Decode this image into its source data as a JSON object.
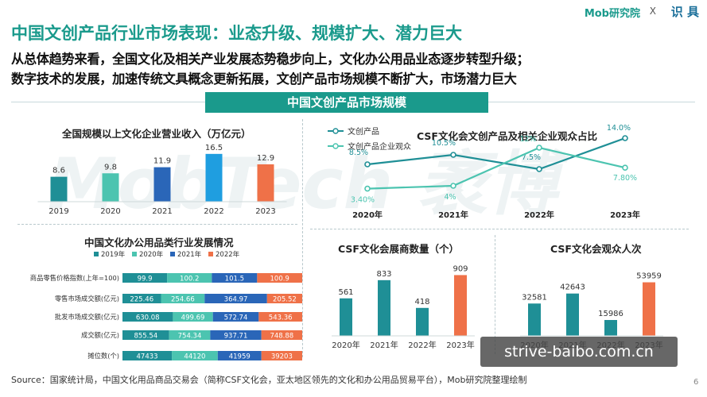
{
  "header": {
    "title": "中国文创产品行业市场表现：业态升级、规模扩大、潜力巨大",
    "subtitle_line1": "从总体趋势来看，全国文化及相关产业发展态势稳步向上，文化办公用品业态逐步转型升级；",
    "subtitle_line2": "数字技术的发展，加速传统文具概念更新拓展，文创产品市场规模不断扩大，市场潜力巨大",
    "logo_text": "Mob研究院",
    "logo_x": "X",
    "logo2_text": "识 具",
    "section_band": "中国文创产品市场规模"
  },
  "watermark": "MobTech 袤博",
  "colors": {
    "teal": "#1f8f96",
    "mint": "#4cc4b0",
    "blue": "#2a66b8",
    "orange": "#ef7148",
    "brand": "#1a9a8c"
  },
  "footer": {
    "source": "Source：国家统计局，中国文化用品商品交易会（简称CSF文化会，亚太地区领先的文化和办公用品贸易平台），Mob研究院整理绘制",
    "page_number": "6",
    "site_badge": "strive-baibo.com.cn"
  },
  "chart_data": [
    {
      "id": "revenue",
      "type": "bar",
      "title": "全国规模以上文化企业营业收入（万亿元）",
      "categories": [
        "2019",
        "2020",
        "2021",
        "2022",
        "2023"
      ],
      "values": [
        8.6,
        9.8,
        11.9,
        16.5,
        12.9
      ],
      "labels": [
        "8.6",
        "9.8",
        "11.9",
        "16.5",
        "12.9"
      ],
      "colors": [
        "#1f8f96",
        "#4cc4b0",
        "#2a66b8",
        "#1f9ee0",
        "#ef7148"
      ],
      "ylim": [
        0,
        17
      ]
    },
    {
      "id": "csf_share",
      "type": "line",
      "title": "CSF文化会文创产品及相关企业观众占比",
      "categories": [
        "2020年",
        "2021年",
        "2022年",
        "2023年"
      ],
      "series": [
        {
          "name": "文创产品",
          "values": [
            8.5,
            10.5,
            7.5,
            14.0
          ],
          "labels": [
            "8.5%",
            "10.5%",
            "7.5%",
            "14.0%"
          ],
          "color": "#1f8f96"
        },
        {
          "name": "文创产品企业观众",
          "values": [
            3.4,
            4,
            12,
            7.8
          ],
          "labels": [
            "3.40%",
            "4%",
            "12%",
            "7.80%"
          ],
          "color": "#4cc4b0"
        }
      ],
      "ylim": [
        0,
        15
      ],
      "legend": "top-left"
    },
    {
      "id": "office_supplies",
      "type": "bar",
      "orientation": "horizontal-stacked",
      "title": "中国文化办公用品类行业发展情况",
      "legend": [
        "2019年",
        "2020年",
        "2021年",
        "2022年"
      ],
      "legend_colors": [
        "#1f8f96",
        "#4cc4b0",
        "#2a66b8",
        "#ef7148"
      ],
      "rows": [
        {
          "label": "商品零售价格指数(上年=100)",
          "values": [
            99.9,
            100.2,
            101.5,
            100.9
          ],
          "labels": [
            "99.9",
            "100.2",
            "101.5",
            "100.9"
          ]
        },
        {
          "label": "零售市场成交额(亿元)",
          "values": [
            225.46,
            254.66,
            364.97,
            205.52
          ],
          "labels": [
            "225.46",
            "254.66",
            "364.97",
            "205.52"
          ]
        },
        {
          "label": "批发市场成交额(亿元)",
          "values": [
            630.08,
            499.69,
            572.74,
            543.36
          ],
          "labels": [
            "630.08",
            "499.69",
            "572.74",
            "543.36"
          ]
        },
        {
          "label": "成交额(亿元)",
          "values": [
            855.54,
            754.34,
            937.71,
            748.88
          ],
          "labels": [
            "855.54",
            "754.34",
            "937.71",
            "748.88"
          ]
        },
        {
          "label": "摊位数(个)",
          "values": [
            47433,
            44120,
            41959,
            39203
          ],
          "labels": [
            "47433",
            "44120",
            "41959",
            "39203"
          ]
        }
      ]
    },
    {
      "id": "exhibitors",
      "type": "bar",
      "title": "CSF文化会展商数量（个）",
      "categories": [
        "2020年",
        "2021年",
        "2022年",
        "2023年"
      ],
      "values": [
        561,
        833,
        418,
        909
      ],
      "labels": [
        "561",
        "833",
        "418",
        "909"
      ],
      "colors": [
        "#1f8f96",
        "#1f8f96",
        "#1f8f96",
        "#ef7148"
      ],
      "ylim": [
        0,
        950
      ]
    },
    {
      "id": "visitors",
      "type": "bar",
      "title": "CSF文化会观众人次",
      "categories": [
        "2020年",
        "2021年",
        "2022年",
        "2023年"
      ],
      "values": [
        32581,
        42643,
        15986,
        53959
      ],
      "labels": [
        "32581",
        "42643",
        "15986",
        "53959"
      ],
      "colors": [
        "#1f8f96",
        "#1f8f96",
        "#1f8f96",
        "#ef7148"
      ],
      "ylim": [
        0,
        56000
      ]
    }
  ]
}
